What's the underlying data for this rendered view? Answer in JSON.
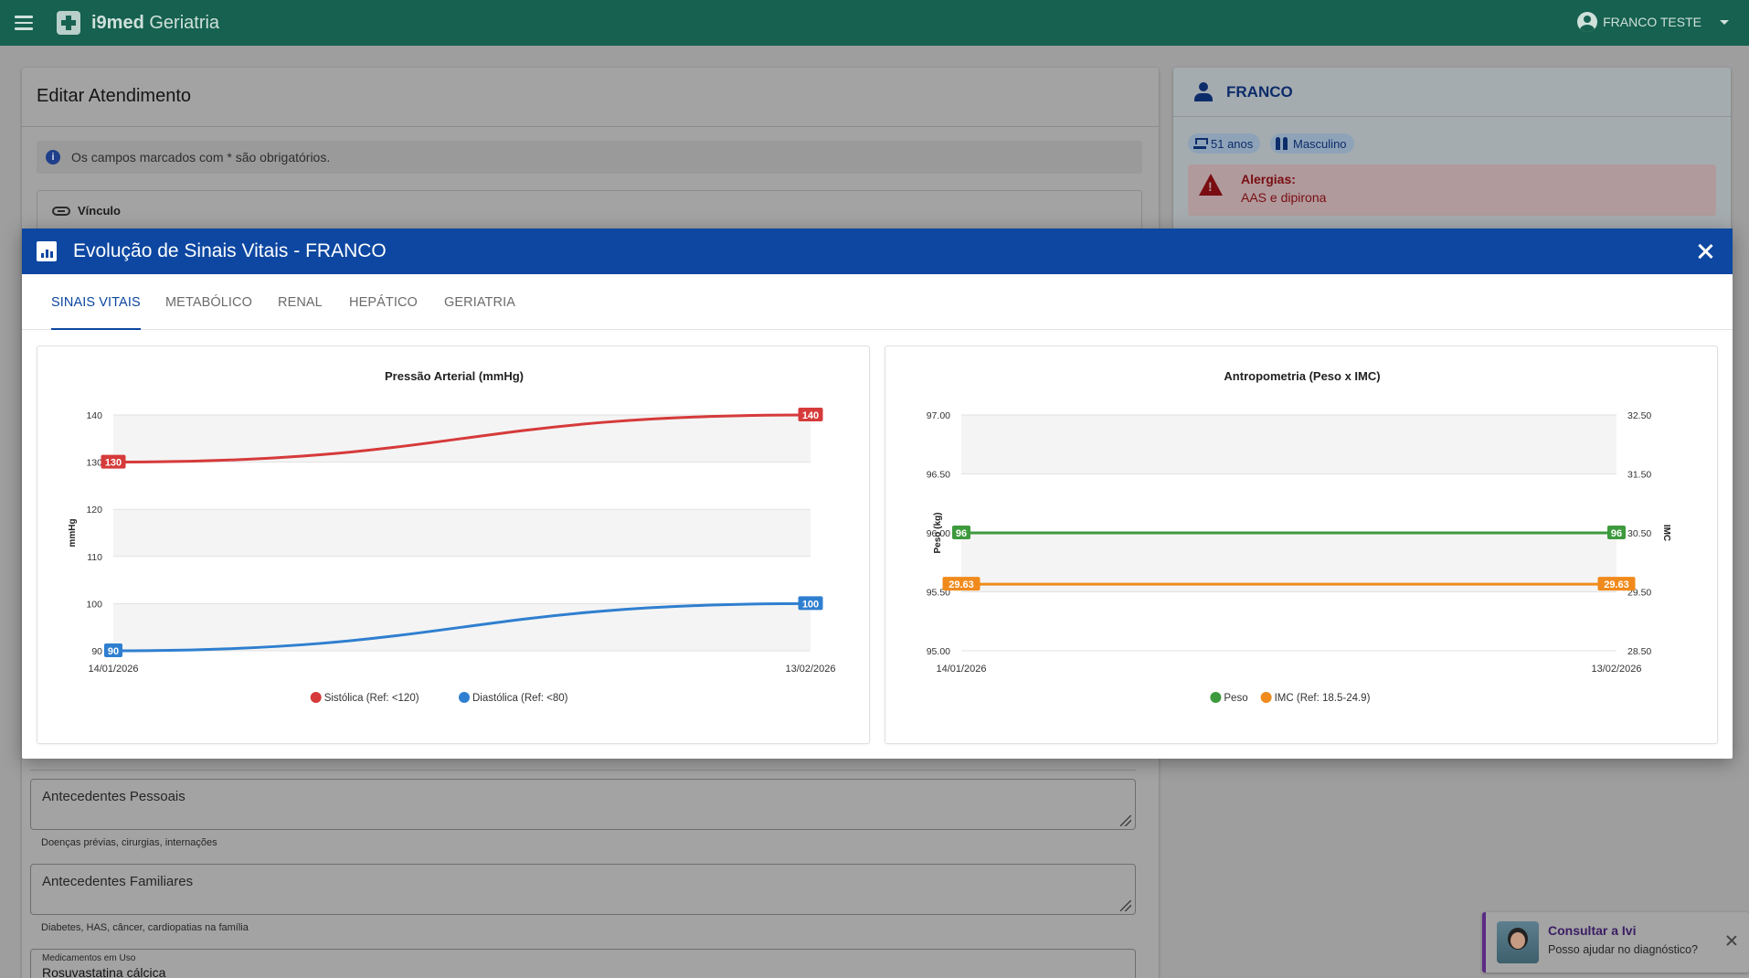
{
  "app": {
    "brand_bold": "i9med",
    "brand_rest": " Geriatria",
    "user_name": "FRANCO TESTE"
  },
  "page": {
    "title": "Editar Atendimento",
    "info_text": "Os campos marcados com * são obrigatórios.",
    "vinculo_label": "Vínculo",
    "fields": [
      {
        "label": "Antecedentes Pessoais",
        "help": "Doenças prévias, cirurgias, internações"
      },
      {
        "label": "Antecedentes Familiares",
        "help": "Diabetes, HAS, câncer, cardiopatias na família"
      }
    ],
    "medicamentos_label": "Medicamentos em Uso",
    "medicamentos_value": "Rosuvastatina cálcica"
  },
  "patient": {
    "name": "FRANCO",
    "age": "51 anos",
    "sex": "Masculino",
    "allergy_title": "Alergias:",
    "allergy_text": "AAS e dipirona"
  },
  "modal": {
    "title": "Evolução de Sinais Vitais - FRANCO",
    "tabs": [
      "SINAIS VITAIS",
      "METABÓLICO",
      "RENAL",
      "HEPÁTICO",
      "GERIATRIA"
    ],
    "active_tab": 0
  },
  "chart_data": [
    {
      "type": "line",
      "title": "Pressão Arterial (mmHg)",
      "xlabel": "",
      "ylabel": "mmHg",
      "x": [
        "14/01/2026",
        "13/02/2026"
      ],
      "ylim": [
        90,
        140
      ],
      "yticks": [
        "90",
        "100",
        "110",
        "120",
        "130",
        "140"
      ],
      "series": [
        {
          "name": "Sistólica (Ref: <120)",
          "color": "#d63a3a",
          "values": [
            130,
            140
          ],
          "labels": [
            "130",
            "140"
          ]
        },
        {
          "name": "Diastólica (Ref: <80)",
          "color": "#2f7fd0",
          "values": [
            90,
            100
          ],
          "labels": [
            "90",
            "100"
          ]
        }
      ],
      "legend": "bottom"
    },
    {
      "type": "line",
      "title": "Antropometria (Peso x IMC)",
      "xlabel": "",
      "ylabel": "Peso (kg)",
      "ylabel_right": "IMC",
      "x": [
        "14/01/2026",
        "13/02/2026"
      ],
      "ylim": [
        95,
        97
      ],
      "ylim_right": [
        28.5,
        32.5
      ],
      "yticks": [
        "95.00",
        "95.50",
        "96.00",
        "96.50",
        "97.00"
      ],
      "yticks_right": [
        "28.50",
        "29.50",
        "30.50",
        "31.50",
        "32.50"
      ],
      "series": [
        {
          "name": "Peso",
          "color": "#3d9a3d",
          "axis": "left",
          "values": [
            96,
            96
          ],
          "labels": [
            "96",
            "96"
          ]
        },
        {
          "name": "IMC (Ref: 18.5-24.9)",
          "color": "#f08a1c",
          "axis": "right",
          "values": [
            29.63,
            29.63
          ],
          "labels": [
            "29.63",
            "29.63"
          ]
        }
      ],
      "legend": "bottom"
    }
  ],
  "assistant": {
    "title": "Consultar a Ivi",
    "text": "Posso ajudar no diagnóstico?"
  }
}
